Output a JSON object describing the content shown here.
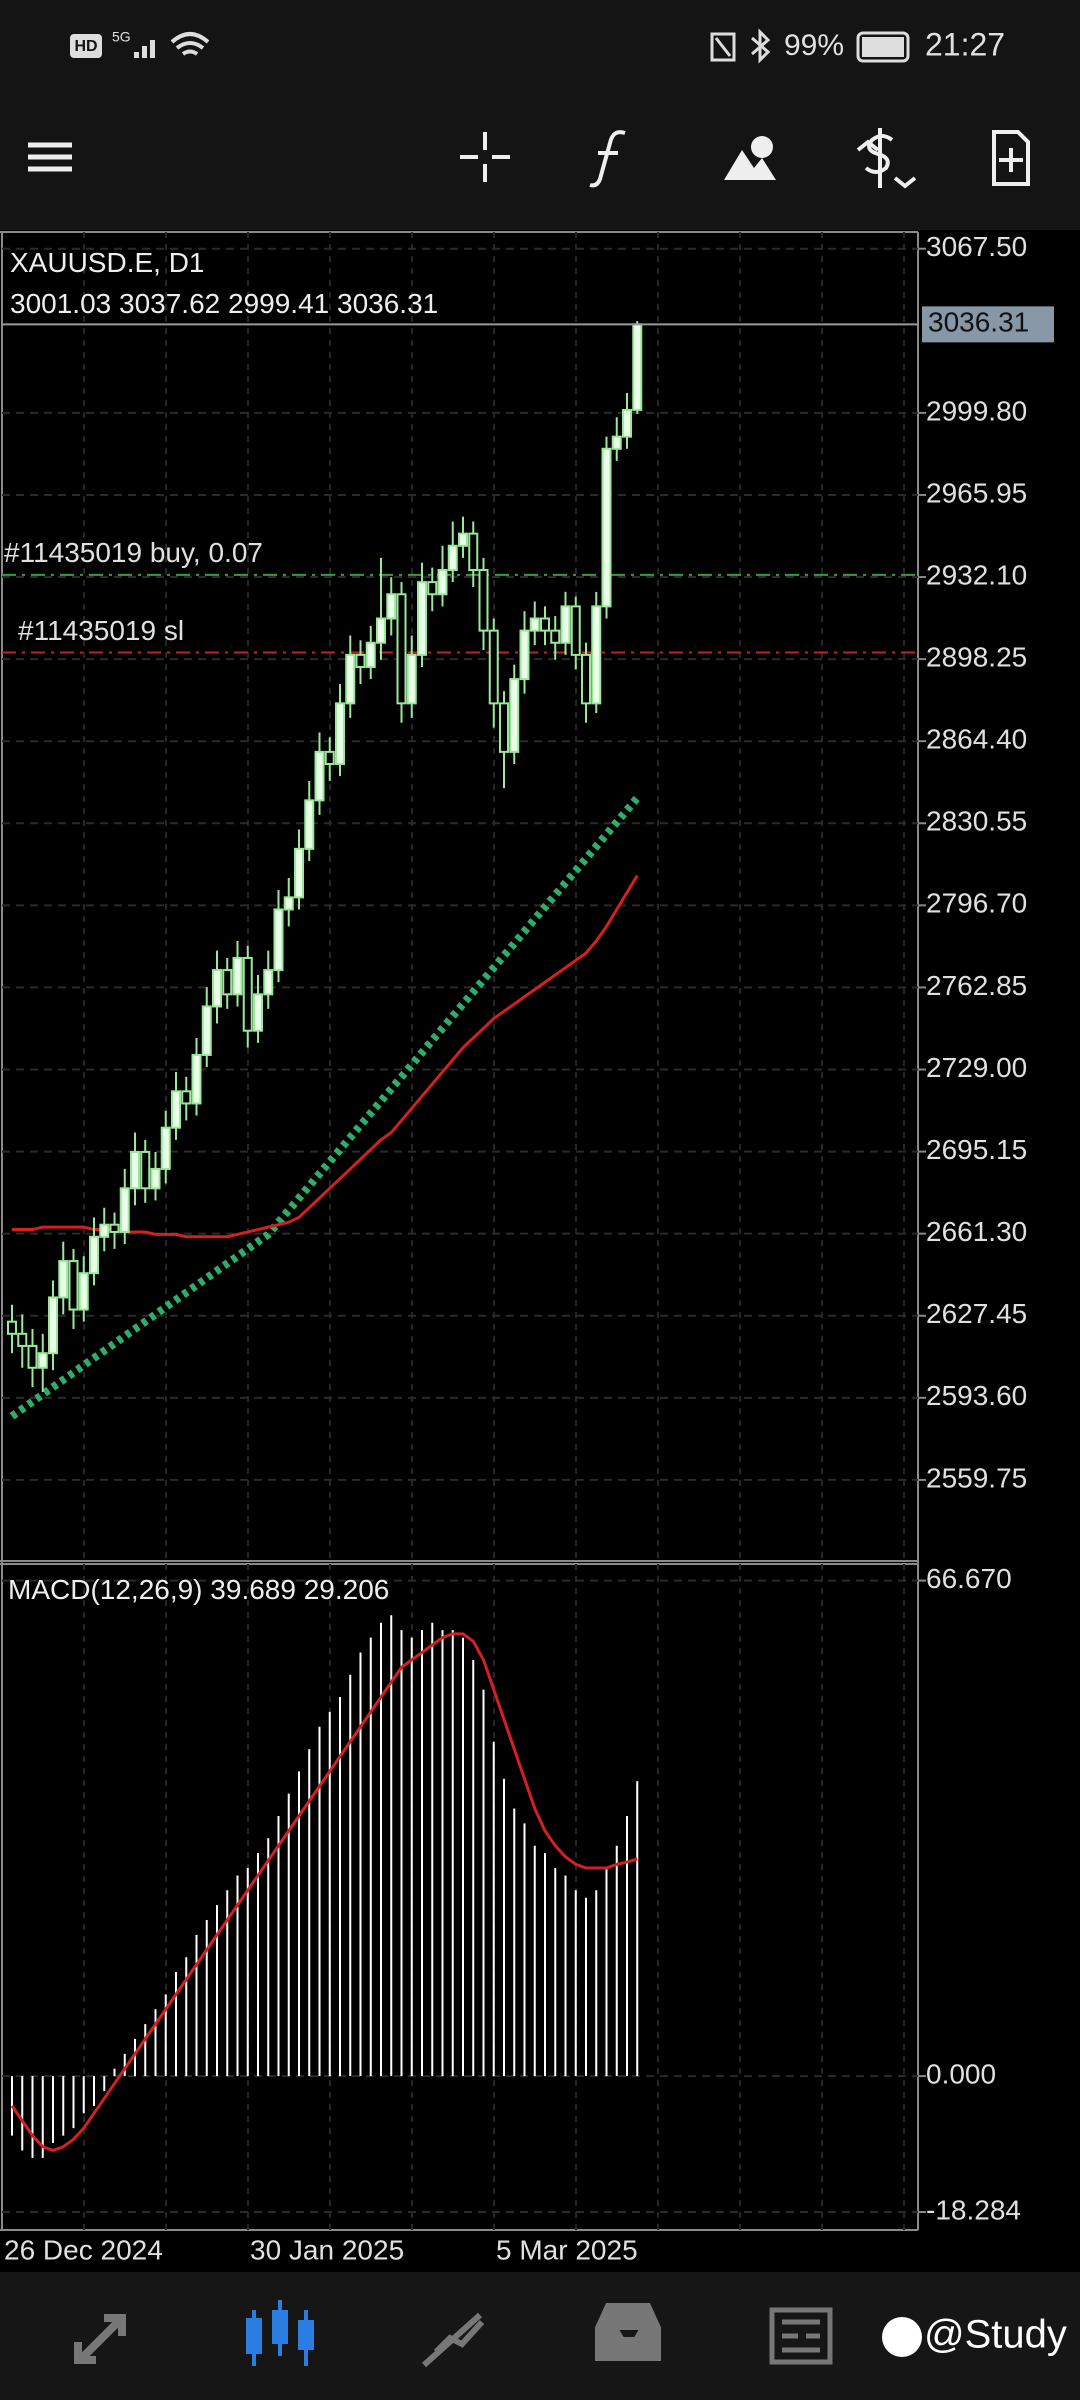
{
  "status_bar": {
    "network": "HD",
    "signal": "5G",
    "battery": "99%",
    "time": "21:27"
  },
  "watermark": "@Study",
  "chart_data": [
    {
      "type": "candlestick",
      "title": "XAUUSD.E, D1",
      "categories": [
        "26 Dec 2024",
        null,
        null,
        null,
        null,
        null,
        null,
        null,
        null,
        null,
        null,
        null,
        null,
        null,
        null,
        null,
        null,
        null,
        null,
        null,
        null,
        null,
        null,
        null,
        "30 Jan 2025",
        null,
        null,
        null,
        null,
        null,
        null,
        null,
        null,
        null,
        null,
        null,
        null,
        null,
        null,
        null,
        null,
        null,
        null,
        null,
        null,
        null,
        null,
        null,
        "5 Mar 2025",
        null,
        null,
        null,
        null,
        null,
        null,
        null,
        null,
        null,
        null,
        null,
        null,
        null
      ],
      "open": [
        2625,
        2620,
        2615,
        2606,
        2612,
        2635,
        2650,
        2630,
        2645,
        2660,
        2665,
        2662,
        2680,
        2695,
        2680,
        2688,
        2705,
        2720,
        2715,
        2735,
        2755,
        2770,
        2760,
        2775,
        2745,
        2760,
        2770,
        2795,
        2800,
        2820,
        2840,
        2860,
        2855,
        2880,
        2900,
        2895,
        2905,
        2915,
        2925,
        2880,
        2900,
        2930,
        2925,
        2935,
        2945,
        2950,
        2935,
        2910,
        2880,
        2860,
        2890,
        2910,
        2915,
        2910,
        2905,
        2920,
        2900,
        2880,
        2920,
        2985,
        2990,
        3001.03
      ],
      "high": [
        2632,
        2628,
        2622,
        2620,
        2642,
        2658,
        2655,
        2652,
        2668,
        2672,
        2670,
        2688,
        2703,
        2700,
        2695,
        2712,
        2728,
        2726,
        2742,
        2763,
        2778,
        2775,
        2782,
        2780,
        2768,
        2778,
        2803,
        2808,
        2828,
        2848,
        2868,
        2866,
        2888,
        2908,
        2906,
        2912,
        2940,
        2932,
        2930,
        2908,
        2938,
        2936,
        2945,
        2955,
        2957,
        2955,
        2940,
        2915,
        2885,
        2896,
        2918,
        2922,
        2920,
        2916,
        2926,
        2924,
        2905,
        2926,
        2990,
        2998,
        3008,
        3037.62
      ],
      "low": [
        2612,
        2606,
        2598,
        2596,
        2605,
        2628,
        2622,
        2625,
        2640,
        2654,
        2655,
        2657,
        2673,
        2674,
        2675,
        2682,
        2700,
        2708,
        2710,
        2730,
        2748,
        2754,
        2755,
        2738,
        2740,
        2754,
        2765,
        2788,
        2795,
        2815,
        2834,
        2848,
        2850,
        2874,
        2888,
        2890,
        2898,
        2908,
        2872,
        2874,
        2895,
        2918,
        2920,
        2930,
        2940,
        2928,
        2902,
        2870,
        2845,
        2855,
        2884,
        2904,
        2904,
        2898,
        2900,
        2894,
        2872,
        2876,
        2915,
        2980,
        2985,
        2999.41
      ],
      "close": [
        2620,
        2615,
        2606,
        2612,
        2635,
        2650,
        2630,
        2645,
        2660,
        2665,
        2662,
        2680,
        2695,
        2680,
        2688,
        2705,
        2720,
        2715,
        2735,
        2755,
        2770,
        2760,
        2775,
        2745,
        2760,
        2770,
        2795,
        2800,
        2820,
        2840,
        2860,
        2855,
        2880,
        2900,
        2895,
        2905,
        2915,
        2925,
        2880,
        2900,
        2930,
        2925,
        2935,
        2945,
        2950,
        2935,
        2910,
        2880,
        2860,
        2890,
        2910,
        2915,
        2910,
        2905,
        2920,
        2900,
        2880,
        2920,
        2985,
        2990,
        3001,
        3036.31
      ],
      "candle_color": "#9be89b",
      "overlays": [
        {
          "style": "dotted",
          "color": "#2fae6a",
          "values": [
            2586,
            2589,
            2592,
            2595,
            2598,
            2601,
            2604,
            2607,
            2610,
            2613,
            2616,
            2619,
            2622,
            2625,
            2628,
            2631,
            2634,
            2637,
            2640,
            2643,
            2646,
            2649,
            2652,
            2655,
            2658,
            2661,
            2666,
            2671,
            2676,
            2681,
            2686,
            2691,
            2696,
            2701,
            2706,
            2711,
            2716,
            2721,
            2726,
            2731,
            2736,
            2741,
            2746,
            2751,
            2756,
            2761,
            2766,
            2771,
            2776,
            2781,
            2786,
            2791,
            2796,
            2801,
            2806,
            2811,
            2816,
            2821,
            2826,
            2831,
            2836,
            2841
          ]
        },
        {
          "style": "line",
          "color": "#d42020",
          "values": [
            2663,
            2663,
            2663,
            2664,
            2664,
            2664,
            2664,
            2664,
            2663,
            2663,
            2663,
            2662,
            2662,
            2662,
            2661,
            2661,
            2661,
            2660,
            2660,
            2660,
            2660,
            2660,
            2661,
            2662,
            2663,
            2664,
            2665,
            2666,
            2668,
            2672,
            2676,
            2680,
            2684,
            2688,
            2692,
            2696,
            2700,
            2703,
            2708,
            2713,
            2718,
            2723,
            2728,
            2733,
            2738,
            2742,
            2746,
            2750,
            2753,
            2756,
            2759,
            2762,
            2765,
            2768,
            2771,
            2774,
            2777,
            2782,
            2788,
            2795,
            2802,
            2809
          ]
        }
      ],
      "orders": [
        {
          "label": "#11435019 buy, 0.07",
          "value": 2933,
          "color": "#3f9a3f"
        },
        {
          "label": "#11435019 sl",
          "value": 2901,
          "color": "#c02424"
        }
      ],
      "ylim": [
        2526.3,
        3074.4
      ],
      "yticks": [
        {
          "value": 3067.5,
          "label": "3067.50"
        },
        {
          "value": 2999.8,
          "label": "2999.80"
        },
        {
          "value": 2965.95,
          "label": "2965.95"
        },
        {
          "value": 2932.1,
          "label": "2932.10"
        },
        {
          "value": 2898.25,
          "label": "2898.25"
        },
        {
          "value": 2864.4,
          "label": "2864.40"
        },
        {
          "value": 2830.55,
          "label": "2830.55"
        },
        {
          "value": 2796.7,
          "label": "2796.70"
        },
        {
          "value": 2762.85,
          "label": "2762.85"
        },
        {
          "value": 2729,
          "label": "2729.00"
        },
        {
          "value": 2695.15,
          "label": "2695.15"
        },
        {
          "value": 2661.3,
          "label": "2661.30"
        },
        {
          "value": 2627.45,
          "label": "2627.45"
        },
        {
          "value": 2593.6,
          "label": "2593.60"
        },
        {
          "value": 2559.75,
          "label": "2559.75"
        }
      ],
      "grid": true
    },
    {
      "type": "macd",
      "title": "MACD(12,26,9)",
      "series": [
        {
          "style": "histogram",
          "color": "#ffffff",
          "values": [
            -8,
            -10,
            -11,
            -11,
            -9,
            -8,
            -7,
            -5,
            -4,
            -2,
            1,
            3,
            5,
            7,
            9,
            11,
            14,
            16,
            19,
            21,
            23,
            25,
            27,
            28,
            30,
            32,
            35,
            38,
            41,
            44,
            47,
            49,
            51,
            54,
            57,
            59,
            61,
            62,
            60,
            59,
            60,
            61,
            60,
            60,
            59,
            56,
            52,
            45,
            40,
            36,
            34,
            31,
            30,
            28,
            27,
            25,
            24,
            25,
            28,
            31,
            35,
            39.689
          ]
        },
        {
          "style": "line",
          "color": "#d42020",
          "values": [
            -4,
            -6,
            -8,
            -9.5,
            -10,
            -9.5,
            -8.5,
            -7,
            -5,
            -3,
            -1,
            1,
            3,
            5,
            7,
            9,
            11,
            13,
            15,
            17,
            19,
            21,
            23,
            25,
            27,
            29,
            31,
            33,
            35,
            37,
            39,
            41,
            43,
            45,
            47,
            49,
            51,
            53,
            55,
            56,
            57,
            58,
            59,
            59.5,
            59.5,
            58.5,
            56,
            52,
            48,
            44,
            40,
            36,
            33,
            31,
            29.5,
            28.5,
            28,
            28,
            28,
            28.5,
            28.8,
            29.206
          ]
        }
      ],
      "ylim": [
        -20.7,
        68.9
      ],
      "yticks": [
        {
          "value": 66.67,
          "label": "66.670"
        },
        {
          "value": 0,
          "label": "0.000"
        },
        {
          "value": -18.284,
          "label": "-18.284"
        }
      ]
    }
  ]
}
